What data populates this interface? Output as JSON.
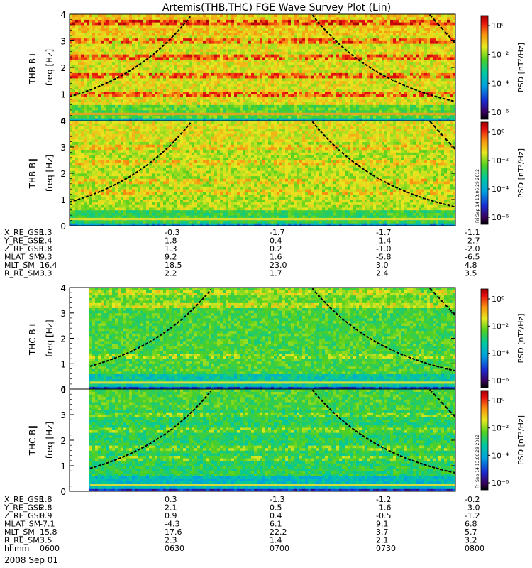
{
  "title": "Artemis(THB,THC) FGE Wave Survey Plot (Lin)",
  "date_label": "2008 Sep 01",
  "stamp": "Fri Sep 14 13:06:29 2012",
  "colorbar": {
    "label": "PSD [nT²/Hz]",
    "ticks": [
      "10⁰",
      "10⁻²",
      "10⁻⁴",
      "10⁻⁶"
    ]
  },
  "ephem_blocks": [
    {
      "rows": [
        {
          "label": "X_RE_GSE",
          "values": [
            "1.3",
            "-0.3",
            "-1.7",
            "-1.7",
            "-1.1"
          ]
        },
        {
          "label": "Y_RE_GSE",
          "values": [
            "2.4",
            "1.8",
            "0.4",
            "-1.4",
            "-2.7"
          ]
        },
        {
          "label": "Z_RE_GSE",
          "values": [
            "1.8",
            "1.3",
            "0.2",
            "-1.0",
            "-2.0"
          ]
        },
        {
          "label": "MLAT_SM",
          "values": [
            "9.3",
            "9.2",
            "1.6",
            "-5.8",
            "-6.5"
          ]
        },
        {
          "label": "MLT_SM",
          "values": [
            "16.4",
            "18.5",
            "23.0",
            "3.0",
            "4.8"
          ]
        },
        {
          "label": "R_RE_SM",
          "values": [
            "3.3",
            "2.2",
            "1.7",
            "2.4",
            "3.5"
          ]
        }
      ]
    },
    {
      "rows": [
        {
          "label": "X_RE_GSE",
          "values": [
            "1.8",
            "0.3",
            "-1.3",
            "-1.2",
            "-0.2"
          ]
        },
        {
          "label": "Y_RE_GSE",
          "values": [
            "2.8",
            "2.1",
            "0.5",
            "-1.6",
            "-3.0"
          ]
        },
        {
          "label": "Z_RE_GSE",
          "values": [
            "0.9",
            "0.9",
            "0.4",
            "-0.5",
            "-1.2"
          ]
        },
        {
          "label": "MLAT_SM",
          "values": [
            "-7.1",
            "-4.3",
            "6.1",
            "9.1",
            "6.8"
          ]
        },
        {
          "label": "MLT_SM",
          "values": [
            "15.8",
            "17.6",
            "22.2",
            "3.7",
            "5.7"
          ]
        },
        {
          "label": "R_RE_SM",
          "values": [
            "3.5",
            "2.3",
            "1.4",
            "2.1",
            "3.2"
          ]
        },
        {
          "label": "hhmm",
          "values": [
            "0600",
            "0630",
            "0700",
            "0730",
            "0800"
          ]
        }
      ]
    }
  ],
  "chart_data": [
    {
      "type": "heatmap",
      "panel_label": "THB B⊥",
      "ylabel": "freq [Hz]",
      "yticks": [
        "0",
        "1",
        "2",
        "3",
        "4"
      ],
      "ylim": [
        0,
        4
      ],
      "x_start": "0600",
      "x_end": "0800",
      "data_start_fraction": 0.0,
      "harmonic_curves": 2
    },
    {
      "type": "heatmap",
      "panel_label": "THB B∥",
      "ylabel": "freq [Hz]",
      "yticks": [
        "0",
        "1",
        "2",
        "3",
        "4"
      ],
      "ylim": [
        0,
        4
      ],
      "x_start": "0600",
      "x_end": "0800",
      "data_start_fraction": 0.0,
      "harmonic_curves": 2
    },
    {
      "type": "heatmap",
      "panel_label": "THC B⊥",
      "ylabel": "freq [Hz]",
      "yticks": [
        "0",
        "1",
        "2",
        "3",
        "4"
      ],
      "ylim": [
        0,
        4
      ],
      "x_start": "0600",
      "x_end": "0800",
      "data_start_fraction": 0.053,
      "harmonic_curves": 2
    },
    {
      "type": "heatmap",
      "panel_label": "THC B∥",
      "ylabel": "freq [Hz]",
      "yticks": [
        "0",
        "1",
        "2",
        "3",
        "4"
      ],
      "ylim": [
        0,
        4
      ],
      "x_start": "0600",
      "x_end": "0800",
      "data_start_fraction": 0.053,
      "harmonic_curves": 2
    }
  ]
}
